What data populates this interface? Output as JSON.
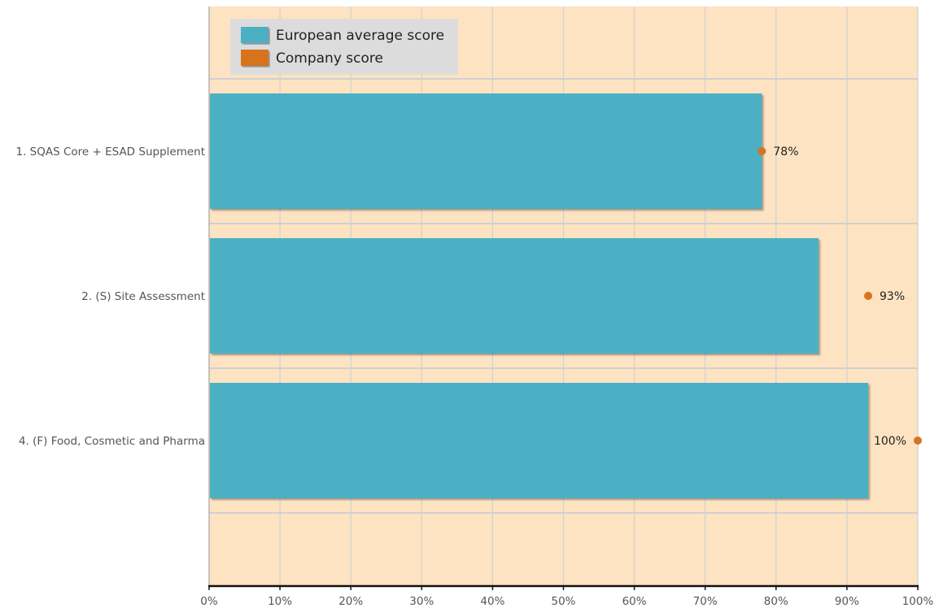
{
  "chart_data": {
    "type": "bar",
    "orientation": "horizontal",
    "categories": [
      "1. SQAS Core + ESAD Supplement",
      "2. (S) Site Assessment",
      "4. (F) Food, Cosmetic and Pharma"
    ],
    "series": [
      {
        "name": "European average score",
        "mark": "bar",
        "values": [
          78,
          86,
          93
        ]
      },
      {
        "name": "Company score",
        "mark": "point",
        "values": [
          78,
          93,
          100
        ],
        "data_labels": [
          "78%",
          "93%",
          "100%"
        ]
      }
    ],
    "xlim": [
      0,
      100
    ],
    "x_ticks": [
      "0%",
      "10%",
      "20%",
      "30%",
      "40%",
      "50%",
      "60%",
      "70%",
      "80%",
      "90%",
      "100%"
    ],
    "grid": true,
    "legend_position": "top-left",
    "title": "",
    "xlabel": "",
    "ylabel": "",
    "colors": {
      "plot_background": "#fde3c2",
      "bar_fill": "#4bb0c4",
      "point_fill": "#d8731f",
      "legend_background": "#dcdcdc",
      "grid": "#d0d0d0",
      "axis": "#111111"
    }
  }
}
